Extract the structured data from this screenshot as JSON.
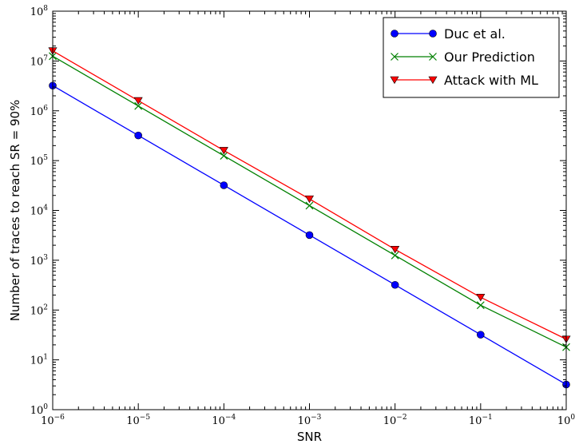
{
  "chart_data": {
    "type": "line",
    "xlabel": "SNR",
    "ylabel": "Number of traces to reach SR = 90%",
    "xscale": "log",
    "yscale": "log",
    "xlim": [
      1e-06,
      1
    ],
    "ylim": [
      1,
      100000000
    ],
    "x_tick_labels": [
      {
        "value": 1e-06,
        "base": "10",
        "exp": "−6"
      },
      {
        "value": 1e-05,
        "base": "10",
        "exp": "−5"
      },
      {
        "value": 0.0001,
        "base": "10",
        "exp": "−4"
      },
      {
        "value": 0.001,
        "base": "10",
        "exp": "−3"
      },
      {
        "value": 0.01,
        "base": "10",
        "exp": "−2"
      },
      {
        "value": 0.1,
        "base": "10",
        "exp": "−1"
      },
      {
        "value": 1,
        "base": "10",
        "exp": "0"
      }
    ],
    "y_tick_labels": [
      {
        "value": 1,
        "base": "10",
        "exp": "0"
      },
      {
        "value": 10,
        "base": "10",
        "exp": "1"
      },
      {
        "value": 100,
        "base": "10",
        "exp": "2"
      },
      {
        "value": 1000,
        "base": "10",
        "exp": "3"
      },
      {
        "value": 10000,
        "base": "10",
        "exp": "4"
      },
      {
        "value": 100000,
        "base": "10",
        "exp": "5"
      },
      {
        "value": 1000000,
        "base": "10",
        "exp": "6"
      },
      {
        "value": 10000000,
        "base": "10",
        "exp": "7"
      },
      {
        "value": 100000000,
        "base": "10",
        "exp": "8"
      }
    ],
    "x": [
      1e-06,
      1e-05,
      0.0001,
      0.001,
      0.01,
      0.1,
      1
    ],
    "series": [
      {
        "name": "Duc et al.",
        "color": "#0000ff",
        "marker": "circle",
        "values": [
          3200000,
          320000,
          32000,
          3200,
          320,
          32,
          3.2
        ]
      },
      {
        "name": "Our Prediction",
        "color": "#008000",
        "marker": "x",
        "values": [
          12500000,
          1250000,
          125000,
          12500,
          1250,
          125,
          18
        ]
      },
      {
        "name": "Attack with ML",
        "color": "#ff0000",
        "marker": "triangle-down",
        "values": [
          16000000,
          1600000,
          160000,
          17000,
          1650,
          180,
          26
        ]
      }
    ],
    "grid": false,
    "legend": "top-right"
  }
}
